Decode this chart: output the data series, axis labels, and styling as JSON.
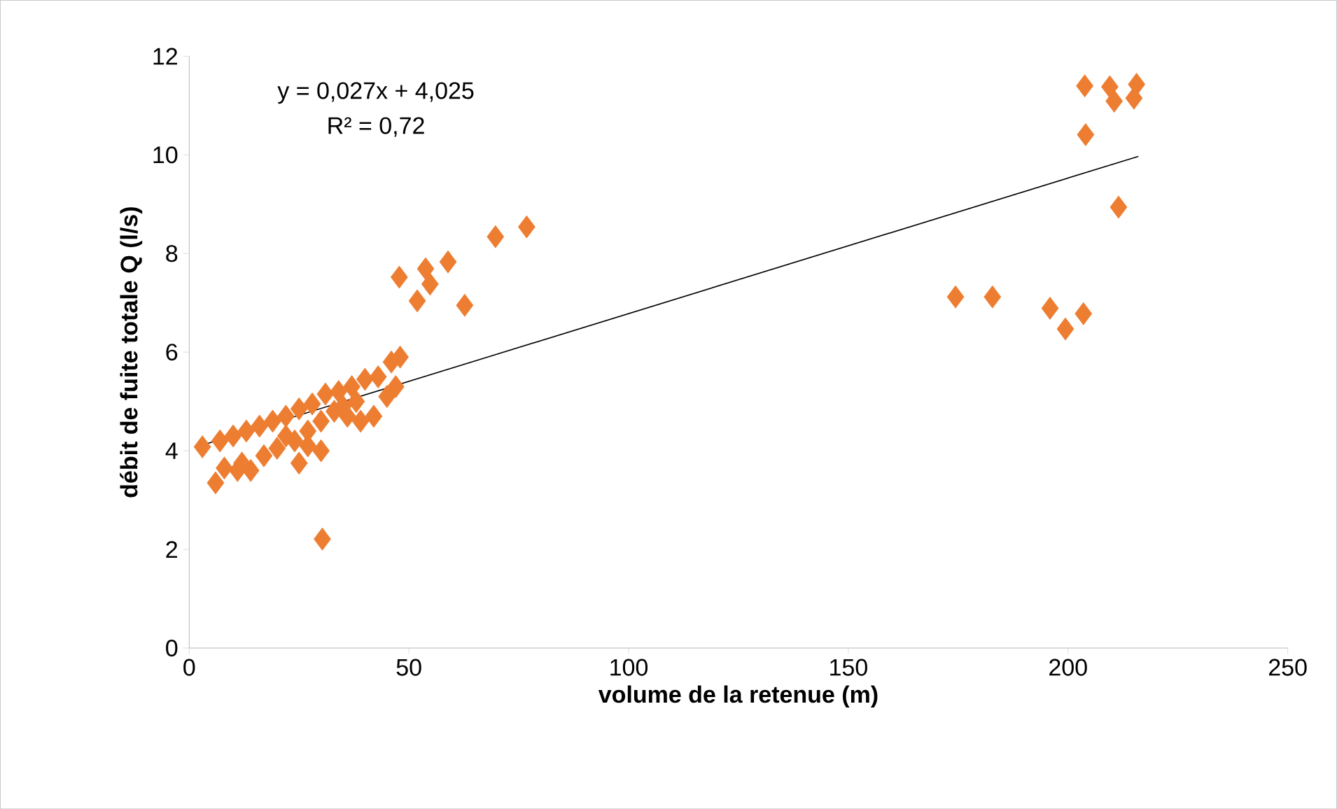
{
  "chart_data": {
    "type": "scatter",
    "xlabel": "volume  de la retenue  (m)",
    "ylabel": "débit de fuite totale Q (l/s)",
    "xlim": [
      0,
      250
    ],
    "ylim": [
      0,
      12
    ],
    "xticks": [
      0,
      50,
      100,
      150,
      200,
      250
    ],
    "yticks": [
      0,
      2,
      4,
      6,
      8,
      10,
      12
    ],
    "grid": false,
    "marker": "diamond",
    "annotations": [
      "y = 0,027x + 4,025",
      "R² = 0,72"
    ],
    "series": [
      {
        "color": "#ed7d31",
        "x": [
          3,
          7,
          10,
          13,
          16,
          19,
          22,
          25,
          28,
          31,
          34,
          37,
          40,
          43,
          46,
          48,
          6,
          8,
          11,
          14,
          12,
          17,
          20,
          24,
          25,
          27,
          30,
          30,
          33,
          36,
          39,
          42,
          45,
          47,
          38,
          35,
          27,
          22,
          30.3,
          47.8,
          53.8,
          58.9,
          51.9,
          54.8,
          62.7,
          69.7,
          76.8,
          174.4,
          182.8,
          195.9,
          199.4,
          203.5,
          203.8,
          209.5,
          215.6,
          210.5,
          215,
          204,
          211.5
        ],
        "values": [
          4.08,
          4.2,
          4.3,
          4.4,
          4.5,
          4.6,
          4.7,
          4.85,
          4.95,
          5.15,
          5.2,
          5.3,
          5.45,
          5.5,
          5.8,
          5.9,
          3.35,
          3.65,
          3.6,
          3.6,
          3.75,
          3.9,
          4.05,
          4.2,
          3.75,
          4.1,
          4.0,
          4.6,
          4.8,
          4.7,
          4.6,
          4.7,
          5.1,
          5.3,
          5.0,
          4.9,
          4.4,
          4.3,
          2.21,
          7.52,
          7.69,
          7.83,
          7.04,
          7.38,
          6.95,
          8.34,
          8.54,
          7.12,
          7.12,
          6.89,
          6.47,
          6.78,
          11.4,
          11.38,
          11.43,
          11.09,
          11.15,
          10.41,
          8.94
        ]
      },
      {
        "type": "line",
        "color": "#000000",
        "marker": "none",
        "x": [
          3.5,
          216
        ],
        "values": [
          4.13,
          9.97
        ]
      }
    ]
  }
}
